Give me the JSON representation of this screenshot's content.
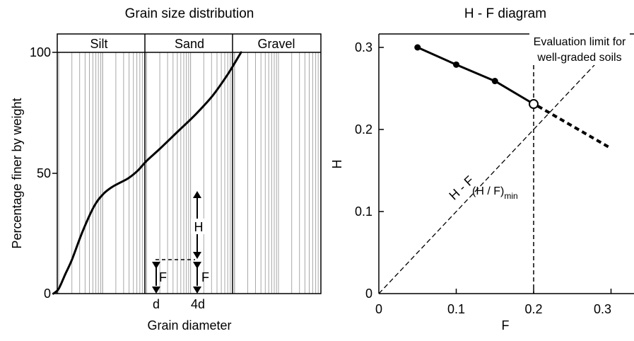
{
  "chart_data": [
    {
      "type": "line",
      "title": "Grain size distribution",
      "xlabel": "Grain diameter",
      "ylabel": "Percentage finer by weight",
      "ylim": [
        0,
        100
      ],
      "y_ticks": [
        "0",
        "50",
        "100"
      ],
      "x_scale": "log",
      "zones": [
        "Silt",
        "Sand",
        "Gravel"
      ],
      "curve_points": [
        [
          -0.12,
          0
        ],
        [
          0.0,
          2
        ],
        [
          0.15,
          8
        ],
        [
          0.3,
          14
        ],
        [
          0.55,
          26
        ],
        [
          0.8,
          36
        ],
        [
          1.0,
          41
        ],
        [
          1.2,
          44
        ],
        [
          1.4,
          46
        ],
        [
          1.6,
          48
        ],
        [
          1.8,
          51
        ],
        [
          2.0,
          55
        ],
        [
          2.3,
          60
        ],
        [
          2.7,
          67
        ],
        [
          3.1,
          74
        ],
        [
          3.5,
          82
        ],
        [
          3.85,
          91
        ],
        [
          4.15,
          100
        ]
      ],
      "x_markers": [
        {
          "label": "d",
          "x": 0.3,
          "y": 14
        },
        {
          "label": "4d",
          "x": 1.2,
          "y": 44
        }
      ],
      "annotations": {
        "H": "H",
        "F1": "F",
        "F2": "F"
      }
    },
    {
      "type": "line",
      "title": "H - F diagram",
      "xlabel": "F",
      "ylabel": "H",
      "xlim": [
        0,
        0.3
      ],
      "ylim": [
        0,
        0.3
      ],
      "x_ticks": [
        "0",
        "0.1",
        "0.2",
        "0.3"
      ],
      "y_ticks": [
        "0",
        "0.1",
        "0.2",
        "0.3"
      ],
      "series": [
        {
          "values": [
            [
              0.05,
              0.3
            ],
            [
              0.1,
              0.279
            ],
            [
              0.15,
              0.259
            ],
            [
              0.2,
              0.231
            ]
          ]
        },
        {
          "values": [
            [
              0.2,
              0.231
            ],
            [
              0.3,
              0.177
            ]
          ]
        },
        {
          "name": "H - F",
          "values": [
            [
              0,
              0
            ],
            [
              0.3,
              0.3
            ]
          ]
        }
      ],
      "evaluation_limit_x": 0.2,
      "annotations": {
        "limit_line1": "Evaluation limit for",
        "limit_line2": "well-graded soils",
        "min_label": "(H / F)",
        "min_sub": "min"
      }
    }
  ]
}
